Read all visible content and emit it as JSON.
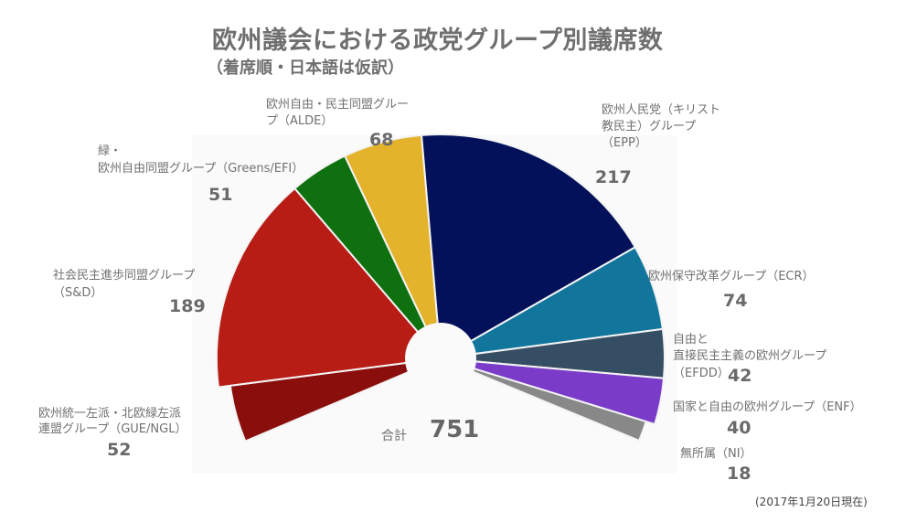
{
  "header": {
    "title": "欧州議会における政党グループ別議席数",
    "subtitle": "（着席順・日本語は仮訳）"
  },
  "footer": {
    "date_note": "(2017年1月20日現在)"
  },
  "total": {
    "label": "合計",
    "value": "751"
  },
  "labels": {
    "gue": {
      "line1": "欧州統一左派・北欧緑左派",
      "line2": "連盟グループ（GUE/NGL）",
      "value": "52"
    },
    "sd": {
      "line1": "社会民主進歩同盟グループ",
      "line2": "（S&D）",
      "value": "189"
    },
    "greens": {
      "line1": "緑・",
      "line2": "欧州自由同盟グループ（Greens/EFI）",
      "value": "51"
    },
    "alde": {
      "line1": "欧州自由・民主同盟グルー",
      "line2": "プ（ALDE）",
      "value": "68"
    },
    "epp": {
      "line1": "欧州人民党（キリスト",
      "line2": "教民主）グループ",
      "line3": "（EPP）",
      "value": "217"
    },
    "ecr": {
      "line1": "欧州保守改革グループ（ECR）",
      "value": "74"
    },
    "efdd": {
      "line1": "自由と",
      "line2": "直接民主主義の欧州グループ",
      "line3": "（EFDD）",
      "value": "42"
    },
    "enf": {
      "line1": "国家と自由の欧州グループ（ENF）",
      "value": "40"
    },
    "ni": {
      "line1": "無所属（NI）",
      "value": "18"
    }
  },
  "chart_data": {
    "type": "pie",
    "subtype": "semi-donut (parliament seating, arranged left to right)",
    "title": "欧州議会における政党グループ別議席数",
    "subtitle": "（着席順・日本語は仮訳）",
    "categories": [
      "GUE/NGL",
      "S&D",
      "Greens/EFI",
      "ALDE",
      "EPP",
      "ECR",
      "EFDD",
      "ENF",
      "NI"
    ],
    "labels_ja": [
      "欧州統一左派・北欧緑左派連盟グループ",
      "社会民主進歩同盟グループ",
      "緑・欧州自由同盟グループ",
      "欧州自由・民主同盟グループ",
      "欧州人民党（キリスト教民主）グループ",
      "欧州保守改革グループ",
      "自由と直接民主主義の欧州グループ",
      "国家と自由の欧州グループ",
      "無所属"
    ],
    "values": [
      52,
      189,
      51,
      68,
      217,
      74,
      42,
      40,
      18
    ],
    "colors": [
      "#8a0f0c",
      "#b71c15",
      "#0f7010",
      "#e3b32c",
      "#03115a",
      "#12769c",
      "#364e63",
      "#7a3cc8",
      "#888888"
    ],
    "total": 751,
    "annotation": "合計 751",
    "note": "(2017年1月20日現在)"
  }
}
